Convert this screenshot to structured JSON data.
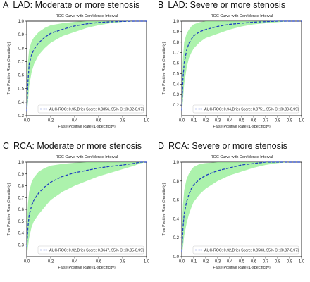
{
  "style": {
    "curve_color": "#1f3fbf",
    "band_color": "#90ee90",
    "chance_color": "#808080"
  },
  "chart_data": [
    {
      "type": "line",
      "panel_letter": "A",
      "panel_title": "LAD: Moderate or more  stenosis",
      "title": "ROC Curve with Confidence Interval",
      "xlabel": "False Positive Rate (1-specificity)",
      "ylabel": "True Positive Rate (Sensitivity)",
      "xlim": [
        0,
        1
      ],
      "ylim": [
        0.3,
        1.0
      ],
      "xticks": [
        "0.0",
        "0.2",
        "0.4",
        "0.6",
        "0.8",
        "1.0"
      ],
      "yticks": [
        "0.3",
        "0.4",
        "0.5",
        "0.6",
        "0.7",
        "0.8",
        "0.9",
        "1.0"
      ],
      "legend_position": "lower-right",
      "grid": false,
      "series": [
        {
          "name": "AUC-ROC: 0.95,Brier Score: 0.0856, 95% CI: [0.92-0.97]",
          "x": [
            0,
            0.01,
            0.02,
            0.04,
            0.06,
            0.1,
            0.15,
            0.2,
            0.3,
            0.4,
            0.5,
            0.6,
            0.7,
            0.8,
            0.9,
            1.0
          ],
          "y": [
            0.33,
            0.55,
            0.68,
            0.75,
            0.79,
            0.84,
            0.88,
            0.91,
            0.94,
            0.965,
            0.98,
            0.99,
            0.995,
            0.998,
            1.0,
            1.0
          ],
          "ci_upper": [
            0.45,
            0.7,
            0.79,
            0.85,
            0.88,
            0.92,
            0.95,
            0.97,
            0.985,
            0.995,
            1.0,
            1.0,
            1.0,
            1.0,
            1.0,
            1.0
          ],
          "ci_lower": [
            0.3,
            0.4,
            0.52,
            0.62,
            0.68,
            0.75,
            0.8,
            0.84,
            0.89,
            0.92,
            0.95,
            0.97,
            0.985,
            0.995,
            1.0,
            1.0
          ]
        }
      ]
    },
    {
      "type": "line",
      "panel_letter": "B",
      "panel_title": "LAD: Severe or more stenosis",
      "title": "ROC Curve with Confidence Interval",
      "xlabel": "False Positive Rate (1-specificity)",
      "ylabel": "True Positive Rate (Sensitivity)",
      "xlim": [
        0,
        1
      ],
      "ylim": [
        0.1,
        1.0
      ],
      "xticks": [
        "0.0",
        "0.1",
        "0.2",
        "0.3",
        "0.4",
        "0.5",
        "0.6",
        "0.7",
        "0.8",
        "0.9",
        "1.0"
      ],
      "yticks": [
        "0.2",
        "0.3",
        "0.4",
        "0.5",
        "0.6",
        "0.7",
        "0.8",
        "0.9",
        "1.0"
      ],
      "legend_position": "lower-right",
      "grid": false,
      "series": [
        {
          "name": "AUC-ROC: 0.94,Brier Score: 0.0751, 95% CI: [0.89-0.99]",
          "x": [
            0,
            0.01,
            0.02,
            0.04,
            0.06,
            0.08,
            0.1,
            0.15,
            0.2,
            0.3,
            0.4,
            0.5,
            0.6,
            0.7,
            0.8,
            0.9,
            1.0
          ],
          "y": [
            0.15,
            0.45,
            0.6,
            0.72,
            0.79,
            0.83,
            0.86,
            0.9,
            0.92,
            0.95,
            0.97,
            0.98,
            0.99,
            0.995,
            1.0,
            1.0,
            1.0
          ],
          "ci_upper": [
            0.3,
            0.65,
            0.8,
            0.88,
            0.92,
            0.95,
            0.97,
            0.99,
            1.0,
            1.0,
            1.0,
            1.0,
            1.0,
            1.0,
            1.0,
            1.0,
            1.0
          ],
          "ci_lower": [
            0.1,
            0.25,
            0.4,
            0.55,
            0.65,
            0.7,
            0.74,
            0.8,
            0.84,
            0.88,
            0.92,
            0.95,
            0.97,
            0.98,
            0.99,
            1.0,
            1.0
          ]
        }
      ]
    },
    {
      "type": "line",
      "panel_letter": "C",
      "panel_title": "RCA: Moderate or more  stenosis",
      "title": "ROC Curve with Confidence Interval",
      "xlabel": "False Positive Rate (1-specificity)",
      "ylabel": "True Positive Rate (Sensitivity)",
      "xlim": [
        0,
        1
      ],
      "ylim": [
        0.2,
        1.0
      ],
      "xticks": [
        "0.0",
        "0.2",
        "0.4",
        "0.6",
        "0.8",
        "1.0"
      ],
      "yticks": [
        "0.3",
        "0.4",
        "0.5",
        "0.6",
        "0.7",
        "0.8",
        "0.9",
        "1.0"
      ],
      "legend_position": "lower-right",
      "grid": false,
      "series": [
        {
          "name": "AUC-ROC: 0.92,Brier Score: 0.0647, 95% CI: [0.85-0.99]",
          "x": [
            0,
            0.01,
            0.02,
            0.04,
            0.06,
            0.1,
            0.15,
            0.2,
            0.3,
            0.4,
            0.5,
            0.6,
            0.7,
            0.8,
            0.9,
            0.95,
            1.0
          ],
          "y": [
            0.28,
            0.45,
            0.55,
            0.63,
            0.68,
            0.74,
            0.79,
            0.83,
            0.88,
            0.91,
            0.93,
            0.95,
            0.965,
            0.975,
            0.99,
            1.0,
            1.0
          ],
          "ci_upper": [
            0.45,
            0.65,
            0.75,
            0.83,
            0.87,
            0.92,
            0.95,
            0.97,
            0.985,
            0.995,
            1.0,
            1.0,
            1.0,
            1.0,
            1.0,
            1.0,
            1.0
          ],
          "ci_lower": [
            0.2,
            0.28,
            0.36,
            0.45,
            0.5,
            0.56,
            0.62,
            0.68,
            0.75,
            0.8,
            0.84,
            0.88,
            0.91,
            0.94,
            0.97,
            0.99,
            1.0
          ]
        }
      ]
    },
    {
      "type": "line",
      "panel_letter": "D",
      "panel_title": "RCA: Severe or more stenosis",
      "title": "ROC Curve with Confidence Interval",
      "xlabel": "False Positive Rate (1-specificity)",
      "ylabel": "True Positive Rate (Sensitivity)",
      "xlim": [
        0,
        1
      ],
      "ylim": [
        0.0,
        1.0
      ],
      "xticks": [
        "0.0",
        "0.1",
        "0.2",
        "0.3",
        "0.4",
        "0.5",
        "0.6",
        "0.7",
        "0.8",
        "0.9",
        "1.0"
      ],
      "yticks": [
        "0.0",
        "0.2",
        "0.4",
        "0.6",
        "0.8",
        "1.0"
      ],
      "legend_position": "lower-right",
      "grid": false,
      "series": [
        {
          "name": "AUC-ROC: 0.92,Brier Score: 0.0503, 95% CI: [0.87-0.97]",
          "x": [
            0,
            0.01,
            0.02,
            0.04,
            0.06,
            0.08,
            0.1,
            0.15,
            0.2,
            0.3,
            0.4,
            0.5,
            0.6,
            0.7,
            0.8,
            0.9,
            1.0
          ],
          "y": [
            0.05,
            0.3,
            0.45,
            0.58,
            0.66,
            0.72,
            0.76,
            0.82,
            0.86,
            0.91,
            0.94,
            0.97,
            0.985,
            1.0,
            1.0,
            1.0,
            1.0
          ],
          "ci_upper": [
            0.2,
            0.55,
            0.7,
            0.82,
            0.88,
            0.92,
            0.95,
            0.98,
            0.99,
            1.0,
            1.0,
            1.0,
            1.0,
            1.0,
            1.0,
            1.0,
            1.0
          ],
          "ci_lower": [
            0.0,
            0.1,
            0.22,
            0.35,
            0.45,
            0.52,
            0.58,
            0.66,
            0.72,
            0.8,
            0.86,
            0.9,
            0.94,
            0.97,
            0.99,
            1.0,
            1.0
          ]
        }
      ]
    }
  ]
}
